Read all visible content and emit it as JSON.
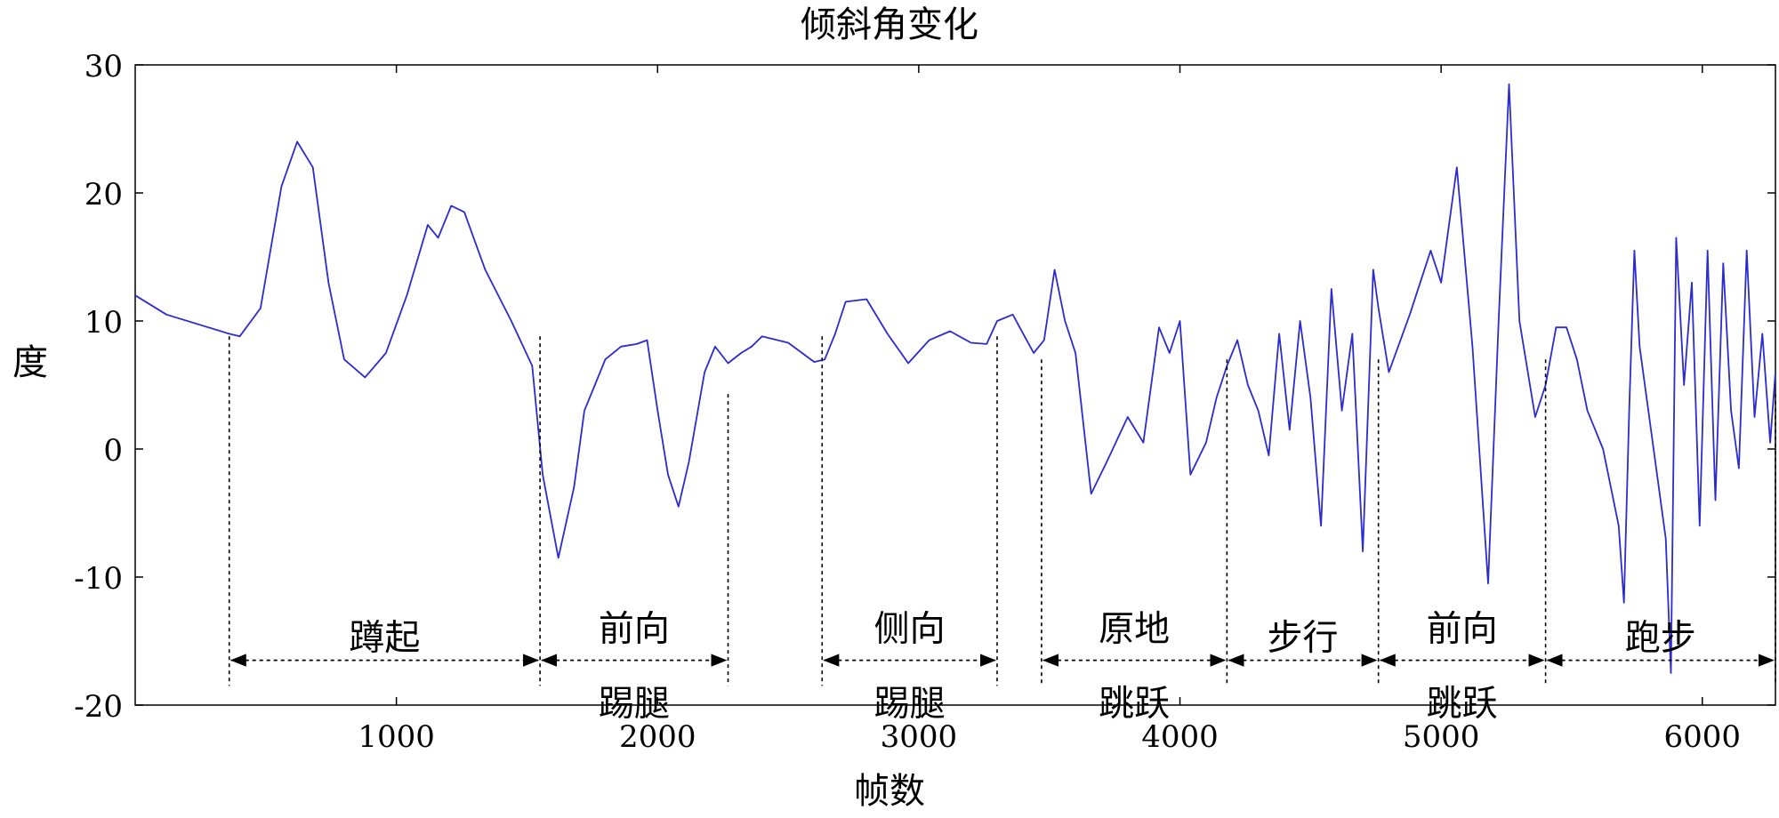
{
  "chart_data": {
    "type": "line",
    "title": "倾斜角变化",
    "xlabel": "帧数",
    "ylabel": "度",
    "xlim": [
      0,
      6280
    ],
    "ylim": [
      -20,
      30
    ],
    "xticks": [
      1000,
      2000,
      3000,
      4000,
      5000,
      6000
    ],
    "yticks": [
      -20,
      -10,
      0,
      10,
      20,
      30
    ],
    "grid": false,
    "series_color": "#2b2bd0",
    "series": [
      {
        "x": [
          0,
          120,
          360,
          400,
          480,
          560,
          620,
          680,
          740,
          800,
          880,
          960,
          1040,
          1120,
          1160,
          1210,
          1260,
          1340,
          1440,
          1520,
          1560,
          1620,
          1680,
          1720,
          1760,
          1800,
          1860,
          1920,
          1960,
          2000,
          2040,
          2080,
          2120,
          2180,
          2220,
          2270,
          2320,
          2360,
          2400,
          2500,
          2600,
          2640,
          2680,
          2720,
          2800,
          2880,
          2960,
          3040,
          3120,
          3200,
          3260,
          3300,
          3360,
          3400,
          3440,
          3480,
          3520,
          3560,
          3600,
          3660,
          3720,
          3800,
          3860,
          3920,
          3960,
          4000,
          4040,
          4100,
          4140,
          4180,
          4220,
          4260,
          4300,
          4340,
          4380,
          4420,
          4460,
          4500,
          4540,
          4580,
          4620,
          4660,
          4700,
          4740,
          4760,
          4800,
          4880,
          4960,
          5000,
          5060,
          5120,
          5180,
          5220,
          5260,
          5300,
          5360,
          5400,
          5440,
          5480,
          5520,
          5560,
          5620,
          5680,
          5700,
          5720,
          5740,
          5760,
          5800,
          5860,
          5880,
          5900,
          5930,
          5960,
          5990,
          6020,
          6050,
          6080,
          6110,
          6140,
          6170,
          6200,
          6230,
          6260,
          6280
        ],
        "y": [
          12.0,
          10.5,
          9.0,
          8.8,
          11.0,
          20.5,
          24.0,
          22.0,
          13.0,
          7.0,
          5.6,
          7.5,
          12.0,
          17.5,
          16.5,
          19.0,
          18.5,
          14.0,
          10.0,
          6.5,
          -2.0,
          -8.5,
          -3.0,
          3.0,
          5.0,
          7.0,
          8.0,
          8.2,
          8.5,
          3.0,
          -2.0,
          -4.5,
          -1.0,
          6.0,
          8.0,
          6.7,
          7.5,
          8.0,
          8.8,
          8.3,
          6.8,
          7.0,
          9.0,
          11.5,
          11.7,
          9.0,
          6.7,
          8.5,
          9.2,
          8.3,
          8.2,
          10.0,
          10.5,
          9.0,
          7.5,
          8.5,
          14.0,
          10.0,
          7.5,
          -3.5,
          -1.0,
          2.5,
          0.5,
          9.5,
          7.5,
          10.0,
          -2.0,
          0.5,
          4.0,
          6.5,
          8.5,
          5.0,
          3.0,
          -0.5,
          9.0,
          1.5,
          10.0,
          4.0,
          -6.0,
          12.5,
          3.0,
          9.0,
          -8.0,
          14.0,
          11.0,
          6.0,
          10.5,
          15.5,
          13.0,
          22.0,
          8.0,
          -10.5,
          10.0,
          28.5,
          10.0,
          2.5,
          5.0,
          9.5,
          9.5,
          7.0,
          3.0,
          0.0,
          -6.0,
          -12.0,
          3.0,
          15.5,
          8.0,
          2.0,
          -7.0,
          -17.5,
          16.5,
          5.0,
          13.0,
          -6.0,
          15.5,
          -4.0,
          14.5,
          3.0,
          -1.5,
          15.5,
          2.5,
          9.0,
          0.5,
          6.0
        ]
      }
    ],
    "annotations": [
      {
        "lines": [
          "蹲起"
        ],
        "x_start": 360,
        "x_end": 1550,
        "y_top": 8.8
      },
      {
        "lines": [
          "前向",
          "踢腿"
        ],
        "x_start": 1550,
        "x_end": 2270,
        "y_top": 4.3
      },
      {
        "lines": [
          "侧向",
          "踢腿"
        ],
        "x_start": 2630,
        "x_end": 3300,
        "y_top": 8.8
      },
      {
        "lines": [
          "原地",
          "跳跃"
        ],
        "x_start": 3470,
        "x_end": 4180,
        "y_top": 7.0
      },
      {
        "lines": [
          "步行"
        ],
        "x_start": 4180,
        "x_end": 4760,
        "y_top": 7.0
      },
      {
        "lines": [
          "前向",
          "跳跃"
        ],
        "x_start": 4760,
        "x_end": 5400,
        "y_top": 7.0
      },
      {
        "lines": [
          "跑步"
        ],
        "x_start": 5400,
        "x_end": 6280,
        "y_top": 4.3
      }
    ]
  }
}
